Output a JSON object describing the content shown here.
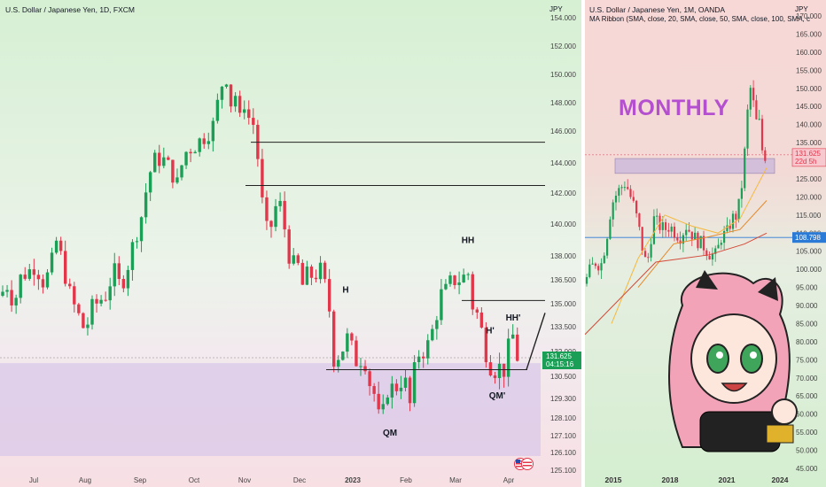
{
  "colors": {
    "up": "#1b9e55",
    "down": "#e2364b",
    "zone": "#d9c6e8"
  },
  "left": {
    "title": "U.S. Dollar / Japanese Yen, 1D, FXCM",
    "currency": "JPY",
    "price_label": "131.625",
    "timer_label": "04:15:16",
    "annotations": [
      "HH",
      "H",
      "HH'",
      "H'",
      "QM",
      "QM'"
    ],
    "icon": "us-flag-icon"
  },
  "right": {
    "title": "U.S. Dollar / Japanese Yen, 1M, OANDA",
    "subtitle": "MA Ribbon (SMA, close, 20, SMA, close, 50, SMA, close, 100, SMA, c",
    "currency": "JPY",
    "overlay_text": "MONTHLY",
    "price_label": "131.625",
    "timer_label": "22d 5h",
    "blue_label": "108.798",
    "icon": "anime-girl-sticker"
  },
  "chart_data": [
    {
      "type": "candlestick",
      "title": "U.S. Dollar / Japanese Yen, 1D, FXCM",
      "ylim": [
        124.9,
        155.6
      ],
      "y_ticks": [
        154.0,
        152.0,
        150.0,
        148.0,
        146.0,
        144.0,
        142.0,
        140.0,
        138.0,
        136.5,
        135.0,
        133.5,
        132.0,
        130.5,
        129.3,
        128.1,
        127.1,
        126.1,
        125.1
      ],
      "y_tick_labels": [
        "154.000",
        "152.000",
        "150.000",
        "148.000",
        "146.000",
        "144.000",
        "142.000",
        "140.000",
        "138.000",
        "136.500",
        "135.000",
        "133.500",
        "132.000",
        "130.500",
        "129.300",
        "128.100",
        "127.100",
        "126.100",
        "125.100"
      ],
      "x_tick_labels": [
        "Jul",
        "Aug",
        "Sep",
        "Oct",
        "Nov",
        "Dec",
        "2023",
        "Feb",
        "Mar",
        "Apr"
      ],
      "price_path": [
        [
          0,
          135.5
        ],
        [
          8,
          136.2
        ],
        [
          16,
          135.0
        ],
        [
          24,
          136.8
        ],
        [
          32,
          137.0
        ],
        [
          40,
          137.5
        ],
        [
          48,
          136.4
        ],
        [
          56,
          136.9
        ],
        [
          64,
          139.0
        ],
        [
          72,
          137.2
        ],
        [
          80,
          135.3
        ],
        [
          88,
          134.3
        ],
        [
          96,
          133.2
        ],
        [
          104,
          134.7
        ],
        [
          112,
          135.2
        ],
        [
          120,
          135.6
        ],
        [
          128,
          137.1
        ],
        [
          136,
          136.0
        ],
        [
          144,
          137.4
        ],
        [
          152,
          139.1
        ],
        [
          160,
          140.6
        ],
        [
          168,
          143.2
        ],
        [
          176,
          144.3
        ],
        [
          184,
          144.2
        ],
        [
          192,
          143.6
        ],
        [
          200,
          142.6
        ],
        [
          208,
          144.6
        ],
        [
          216,
          145.0
        ],
        [
          224,
          145.3
        ],
        [
          232,
          145.8
        ],
        [
          240,
          146.3
        ],
        [
          248,
          148.7
        ],
        [
          254,
          150.2
        ],
        [
          258,
          149.2
        ],
        [
          262,
          147.3
        ],
        [
          266,
          148.7
        ],
        [
          270,
          146.6
        ],
        [
          276,
          148.1
        ],
        [
          280,
          147.0
        ],
        [
          288,
          146.3
        ],
        [
          294,
          142.2
        ],
        [
          300,
          139.5
        ],
        [
          306,
          139.9
        ],
        [
          312,
          141.3
        ],
        [
          318,
          141.1
        ],
        [
          324,
          138.5
        ],
        [
          330,
          137.4
        ],
        [
          336,
          137.4
        ],
        [
          342,
          136.0
        ],
        [
          348,
          137.0
        ],
        [
          354,
          136.6
        ],
        [
          360,
          137.3
        ],
        [
          366,
          136.3
        ],
        [
          372,
          134.5
        ],
        [
          376,
          131.6
        ],
        [
          384,
          131.9
        ],
        [
          392,
          132.8
        ],
        [
          398,
          132.0
        ],
        [
          404,
          131.2
        ],
        [
          410,
          132.0
        ],
        [
          416,
          130.3
        ],
        [
          422,
          129.6
        ],
        [
          428,
          127.9
        ],
        [
          432,
          128.3
        ],
        [
          438,
          130.1
        ],
        [
          444,
          129.7
        ],
        [
          450,
          130.2
        ],
        [
          456,
          130.5
        ],
        [
          462,
          128.7
        ],
        [
          468,
          130.9
        ],
        [
          474,
          132.2
        ],
        [
          480,
          132.0
        ],
        [
          486,
          132.8
        ],
        [
          492,
          134.2
        ],
        [
          498,
          135.6
        ],
        [
          504,
          135.8
        ],
        [
          510,
          136.5
        ],
        [
          516,
          136.5
        ],
        [
          522,
          136.6
        ],
        [
          528,
          137.0
        ],
        [
          532,
          135.0
        ],
        [
          538,
          134.4
        ],
        [
          544,
          133.1
        ],
        [
          550,
          131.6
        ],
        [
          556,
          130.9
        ],
        [
          562,
          131.0
        ],
        [
          566,
          131.1
        ],
        [
          570,
          130.8
        ],
        [
          576,
          133.0
        ],
        [
          580,
          132.9
        ],
        [
          584,
          131.6
        ]
      ],
      "resistance_levels": [
        145.3,
        142.5,
        135.2,
        130.9
      ],
      "zone": [
        124.9,
        131.3
      ],
      "last_price": 131.625
    },
    {
      "type": "candlestick",
      "title": "U.S. Dollar / Japanese Yen, 1M, OANDA",
      "ylim": [
        42.0,
        172.0
      ],
      "y_ticks": [
        170,
        165,
        160,
        155,
        150,
        145,
        140,
        135,
        130,
        125,
        120,
        115,
        110,
        105,
        100,
        95,
        90,
        85,
        80,
        75,
        70,
        65,
        60,
        55,
        50,
        45
      ],
      "y_tick_labels": [
        "170.000",
        "165.000",
        "160.000",
        "155.000",
        "150.000",
        "145.000",
        "140.000",
        "135.000",
        "130.000",
        "125.000",
        "120.000",
        "115.000",
        "110.000",
        "105.000",
        "100.000",
        "95.000",
        "90.000",
        "85.000",
        "80.000",
        "75.000",
        "70.000",
        "65.000",
        "60.000",
        "55.000",
        "50.000",
        "45.000"
      ],
      "x_tick_labels": [
        "2015",
        "2018",
        "2021",
        "2024"
      ],
      "price_path": [
        [
          0,
          96
        ],
        [
          6,
          100
        ],
        [
          12,
          102
        ],
        [
          18,
          101
        ],
        [
          24,
          108
        ],
        [
          30,
          118
        ],
        [
          36,
          121
        ],
        [
          42,
          123
        ],
        [
          46,
          124
        ],
        [
          50,
          121
        ],
        [
          56,
          117
        ],
        [
          62,
          110
        ],
        [
          66,
          104
        ],
        [
          70,
          101
        ],
        [
          74,
          108
        ],
        [
          78,
          114
        ],
        [
          84,
          112
        ],
        [
          90,
          111
        ],
        [
          96,
          112
        ],
        [
          102,
          110
        ],
        [
          108,
          109
        ],
        [
          114,
          112
        ],
        [
          120,
          110
        ],
        [
          126,
          108
        ],
        [
          132,
          107
        ],
        [
          138,
          105
        ],
        [
          142,
          104
        ],
        [
          148,
          104
        ],
        [
          154,
          109
        ],
        [
          160,
          110
        ],
        [
          166,
          114
        ],
        [
          172,
          115
        ],
        [
          178,
          125
        ],
        [
          184,
          145
        ],
        [
          188,
          152
        ],
        [
          192,
          140
        ],
        [
          196,
          142
        ],
        [
          200,
          133
        ],
        [
          204,
          131
        ]
      ],
      "ma_orange": [
        [
          30,
          85
        ],
        [
          60,
          103
        ],
        [
          90,
          115
        ],
        [
          120,
          112
        ],
        [
          150,
          110
        ],
        [
          175,
          114
        ],
        [
          205,
          128
        ]
      ],
      "ma_darkorange": [
        [
          60,
          95
        ],
        [
          100,
          107
        ],
        [
          140,
          109
        ],
        [
          175,
          111
        ],
        [
          205,
          119
        ]
      ],
      "ma_red": [
        [
          0,
          82
        ],
        [
          80,
          102
        ],
        [
          140,
          104
        ],
        [
          180,
          107
        ],
        [
          205,
          110
        ]
      ],
      "zone": [
        126.5,
        130.6
      ],
      "last_price": 131.625,
      "blue_level": 108.798
    }
  ]
}
